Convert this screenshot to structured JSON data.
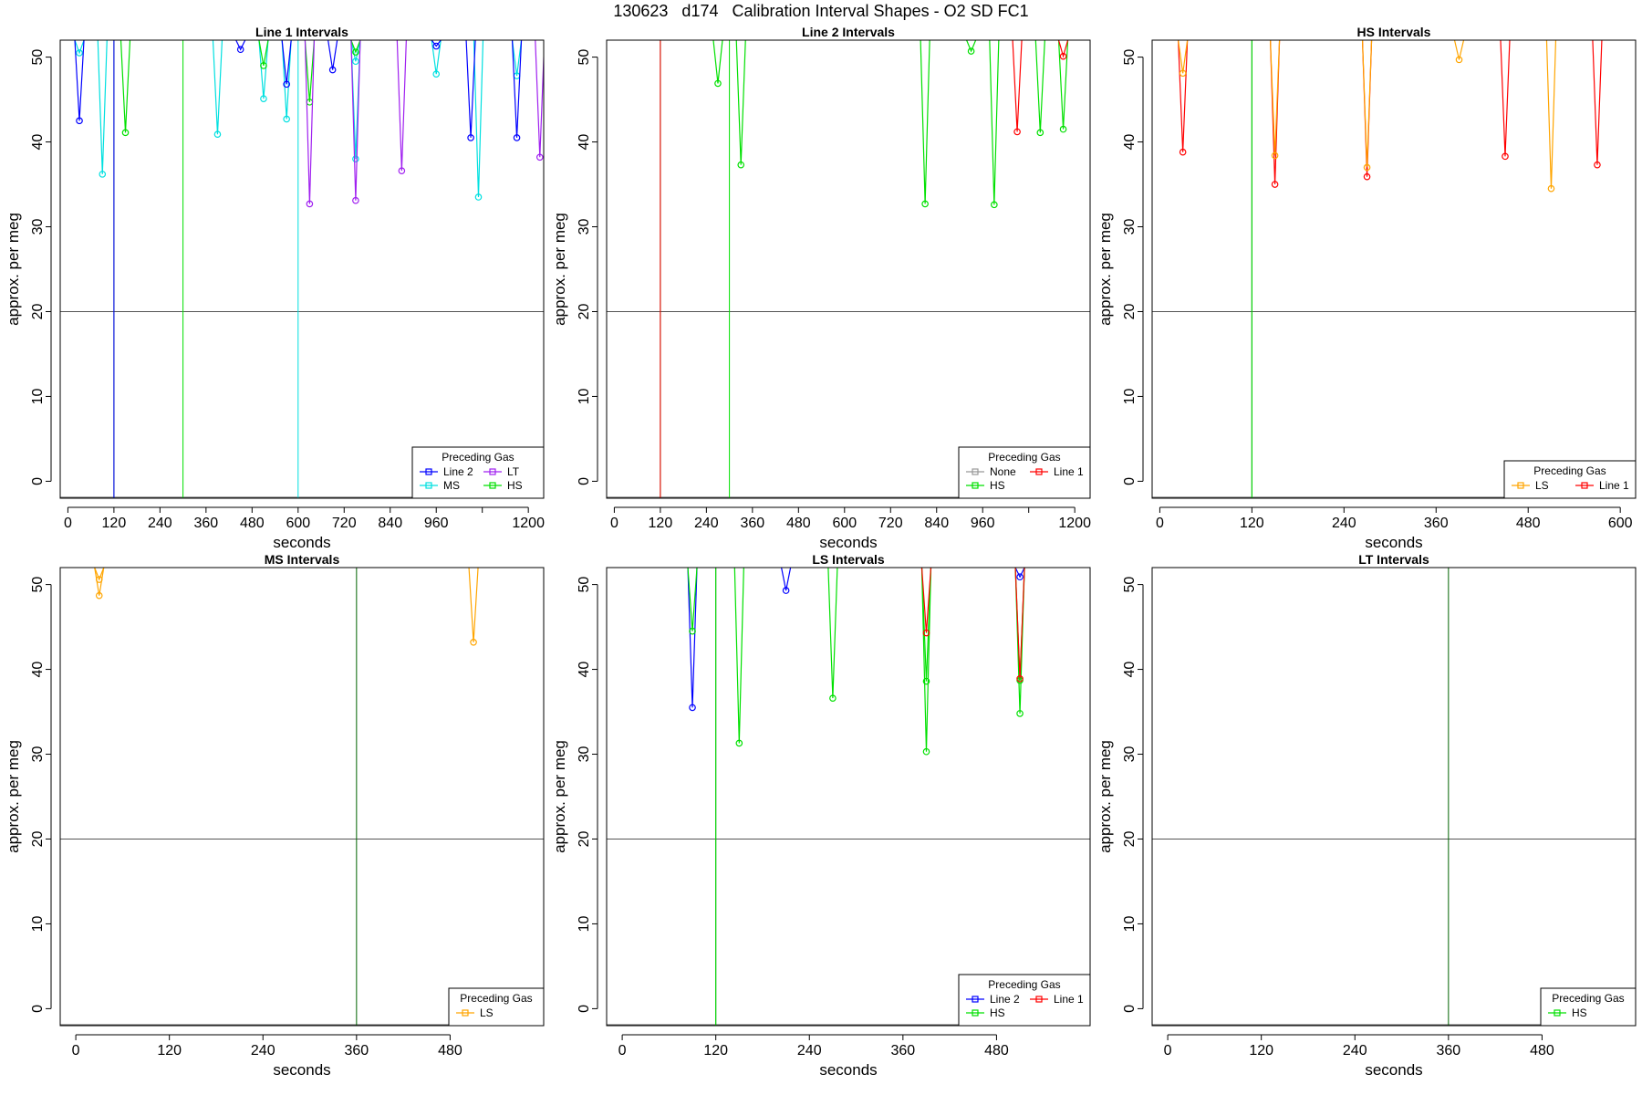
{
  "page_title": "130623   d174   Calibration Interval Shapes - O2 SD FC1",
  "chart_data": [
    {
      "type": "line",
      "title": "Line 1 Intervals",
      "xlabel": "seconds",
      "ylabel": "approx. per meg",
      "xlim": [
        -20,
        1240
      ],
      "ylim": [
        -2,
        52
      ],
      "xticks": [
        0,
        120,
        240,
        360,
        480,
        600,
        720,
        840,
        960,
        1080,
        1200
      ],
      "xtick_labels": [
        "0",
        "120",
        "240",
        "360",
        "480",
        "600",
        "720",
        "840",
        "960",
        "",
        "1200"
      ],
      "yticks": [
        0,
        10,
        20,
        30,
        40,
        50
      ],
      "hline": 20,
      "vlines": [
        {
          "x": 120,
          "color": "#006400"
        },
        {
          "x": 120,
          "color": "#0000ff"
        },
        {
          "x": 300,
          "color": "#00e000"
        },
        {
          "x": 600,
          "color": "#00e0e0"
        }
      ],
      "legend": {
        "title": "Preceding Gas",
        "position": "bottom-right",
        "columns": 2,
        "entries": [
          {
            "label": "Line 2",
            "color": "#0000ff"
          },
          {
            "label": "LT",
            "color": "#a020f0"
          },
          {
            "label": "MS",
            "color": "#00e0e0"
          },
          {
            "label": "HS",
            "color": "#00e000"
          }
        ]
      },
      "series": [
        {
          "name": "MS",
          "color": "#00e0e0",
          "points": [
            [
              30,
              50.5
            ],
            [
              90,
              36.2
            ],
            [
              390,
              40.9
            ],
            [
              510,
              45.1
            ],
            [
              570,
              42.7
            ],
            [
              750,
              38.0
            ],
            [
              750,
              49.5
            ],
            [
              960,
              48.0
            ],
            [
              1070,
              33.5
            ],
            [
              1170,
              47.8
            ]
          ]
        },
        {
          "name": "Line 2",
          "color": "#0000ff",
          "points": [
            [
              30,
              42.5
            ],
            [
              450,
              50.9
            ],
            [
              570,
              46.8
            ],
            [
              690,
              48.5
            ],
            [
              960,
              51.3
            ],
            [
              1050,
              40.5
            ],
            [
              1170,
              40.5
            ]
          ]
        },
        {
          "name": "HS",
          "color": "#00e000",
          "points": [
            [
              150,
              41.1
            ],
            [
              510,
              49.0
            ],
            [
              630,
              44.7
            ],
            [
              750,
              50.6
            ]
          ]
        },
        {
          "name": "LT",
          "color": "#a020f0",
          "points": [
            [
              630,
              32.7
            ],
            [
              750,
              33.1
            ],
            [
              870,
              36.6
            ],
            [
              1230,
              38.2
            ]
          ]
        }
      ]
    },
    {
      "type": "line",
      "title": "Line 2 Intervals",
      "xlabel": "seconds",
      "ylabel": "approx. per meg",
      "xlim": [
        -20,
        1240
      ],
      "ylim": [
        -2,
        52
      ],
      "xticks": [
        0,
        120,
        240,
        360,
        480,
        600,
        720,
        840,
        960,
        1080,
        1200
      ],
      "xtick_labels": [
        "0",
        "120",
        "240",
        "360",
        "480",
        "600",
        "720",
        "840",
        "960",
        "",
        "1200"
      ],
      "yticks": [
        0,
        10,
        20,
        30,
        40,
        50
      ],
      "hline": 20,
      "vlines": [
        {
          "x": 120,
          "color": "#006400"
        },
        {
          "x": 120,
          "color": "#ff0000"
        },
        {
          "x": 300,
          "color": "#00e000"
        }
      ],
      "legend": {
        "title": "Preceding Gas",
        "position": "bottom-right",
        "columns": 2,
        "entries": [
          {
            "label": "None",
            "color": "#999999"
          },
          {
            "label": "Line 1",
            "color": "#ff0000"
          },
          {
            "label": "HS",
            "color": "#00e000"
          }
        ]
      },
      "series": [
        {
          "name": "HS",
          "color": "#00e000",
          "points": [
            [
              270,
              46.9
            ],
            [
              330,
              37.3
            ],
            [
              810,
              32.7
            ],
            [
              930,
              50.7
            ],
            [
              990,
              32.6
            ],
            [
              1110,
              41.1
            ],
            [
              1170,
              41.5
            ]
          ]
        },
        {
          "name": "Line 1",
          "color": "#ff0000",
          "points": [
            [
              1050,
              41.2
            ],
            [
              1170,
              50.1
            ]
          ]
        }
      ]
    },
    {
      "type": "line",
      "title": "HS Intervals",
      "xlabel": "seconds",
      "ylabel": "approx. per meg",
      "xlim": [
        -10,
        620
      ],
      "ylim": [
        -2,
        52
      ],
      "xticks": [
        0,
        120,
        240,
        360,
        480,
        600
      ],
      "xtick_labels": [
        "0",
        "120",
        "240",
        "360",
        "480",
        "600"
      ],
      "yticks": [
        0,
        10,
        20,
        30,
        40,
        50
      ],
      "hline": 20,
      "vlines": [
        {
          "x": 120,
          "color": "#006400"
        },
        {
          "x": 120,
          "color": "#00e000"
        }
      ],
      "legend": {
        "title": "Preceding Gas",
        "position": "bottom-right",
        "columns": 2,
        "entries": [
          {
            "label": "LS",
            "color": "#ffa500"
          },
          {
            "label": "Line 1",
            "color": "#ff0000"
          }
        ]
      },
      "series": [
        {
          "name": "Line 1",
          "color": "#ff0000",
          "points": [
            [
              30,
              38.8
            ],
            [
              150,
              35.0
            ],
            [
              270,
              35.9
            ],
            [
              450,
              38.3
            ],
            [
              570,
              37.3
            ]
          ]
        },
        {
          "name": "LS",
          "color": "#ffa500",
          "points": [
            [
              30,
              48.1
            ],
            [
              150,
              38.4
            ],
            [
              270,
              37.0
            ],
            [
              390,
              49.7
            ],
            [
              510,
              34.5
            ]
          ]
        }
      ]
    },
    {
      "type": "line",
      "title": "MS Intervals",
      "xlabel": "seconds",
      "ylabel": "approx. per meg",
      "xlim": [
        -20,
        600
      ],
      "ylim": [
        -2,
        52
      ],
      "xticks": [
        0,
        120,
        240,
        360,
        480
      ],
      "xtick_labels": [
        "0",
        "120",
        "240",
        "360",
        "480"
      ],
      "yticks": [
        0,
        10,
        20,
        30,
        40,
        50
      ],
      "hline": 20,
      "vlines": [
        {
          "x": 360,
          "color": "#006400"
        }
      ],
      "legend": {
        "title": "Preceding Gas",
        "position": "bottom-right",
        "columns": 1,
        "entries": [
          {
            "label": "LS",
            "color": "#ffa500"
          }
        ]
      },
      "series": [
        {
          "name": "LS",
          "color": "#ffa500",
          "points": [
            [
              30,
              50.6
            ],
            [
              30,
              48.7
            ],
            [
              510,
              43.2
            ]
          ]
        }
      ]
    },
    {
      "type": "line",
      "title": "LS Intervals",
      "xlabel": "seconds",
      "ylabel": "approx. per meg",
      "xlim": [
        -20,
        600
      ],
      "ylim": [
        -2,
        52
      ],
      "xticks": [
        0,
        120,
        240,
        360,
        480
      ],
      "xtick_labels": [
        "0",
        "120",
        "240",
        "360",
        "480"
      ],
      "yticks": [
        0,
        10,
        20,
        30,
        40,
        50
      ],
      "hline": 20,
      "vlines": [
        {
          "x": 120,
          "color": "#006400"
        },
        {
          "x": 120,
          "color": "#00e000"
        }
      ],
      "legend": {
        "title": "Preceding Gas",
        "position": "bottom-right",
        "columns": 2,
        "entries": [
          {
            "label": "Line 2",
            "color": "#0000ff"
          },
          {
            "label": "Line 1",
            "color": "#ff0000"
          },
          {
            "label": "HS",
            "color": "#00e000"
          }
        ]
      },
      "series": [
        {
          "name": "Line 2",
          "color": "#0000ff",
          "points": [
            [
              90,
              35.5
            ],
            [
              210,
              49.3
            ],
            [
              510,
              50.9
            ]
          ]
        },
        {
          "name": "HS",
          "color": "#00e000",
          "points": [
            [
              90,
              44.5
            ],
            [
              150,
              31.3
            ],
            [
              270,
              36.6
            ],
            [
              390,
              30.3
            ],
            [
              390,
              38.6
            ],
            [
              510,
              34.8
            ],
            [
              510,
              38.7
            ]
          ]
        },
        {
          "name": "Line 1",
          "color": "#ff0000",
          "points": [
            [
              390,
              44.3
            ],
            [
              510,
              38.9
            ]
          ]
        }
      ]
    },
    {
      "type": "line",
      "title": "LT Intervals",
      "xlabel": "seconds",
      "ylabel": "approx. per meg",
      "xlim": [
        -20,
        600
      ],
      "ylim": [
        -2,
        52
      ],
      "xticks": [
        0,
        120,
        240,
        360,
        480
      ],
      "xtick_labels": [
        "0",
        "120",
        "240",
        "360",
        "480"
      ],
      "yticks": [
        0,
        10,
        20,
        30,
        40,
        50
      ],
      "hline": 20,
      "vlines": [
        {
          "x": 360,
          "color": "#006400"
        }
      ],
      "legend": {
        "title": "Preceding Gas",
        "position": "bottom-right",
        "columns": 1,
        "entries": [
          {
            "label": "HS",
            "color": "#00e000"
          }
        ]
      },
      "series": []
    }
  ]
}
